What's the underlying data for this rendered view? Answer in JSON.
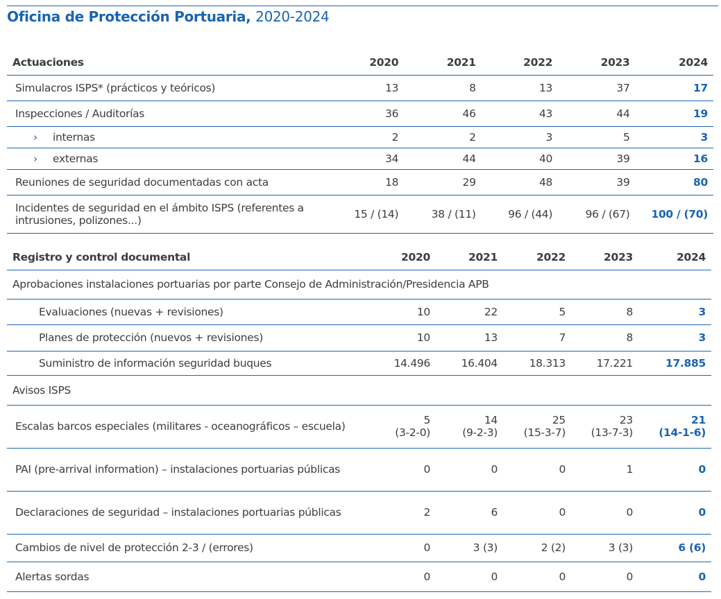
{
  "title": {
    "bold": "Oficina de Protección Portuaria,",
    "years": "2020-2024"
  },
  "actuaciones": {
    "header": [
      "Actuaciones",
      "2020",
      "2021",
      "2022",
      "2023",
      "2024"
    ],
    "rows": [
      {
        "label": "Simulacros ISPS* (prácticos y teóricos)",
        "values": [
          "13",
          "8",
          "13",
          "37",
          "17"
        ]
      },
      {
        "label": "Inspecciones / Auditorías",
        "values": [
          "36",
          "46",
          "43",
          "44",
          "19"
        ]
      },
      {
        "label": "internas",
        "sub": true,
        "values": [
          "2",
          "2",
          "3",
          "5",
          "3"
        ]
      },
      {
        "label": "externas",
        "sub": true,
        "values": [
          "34",
          "44",
          "40",
          "39",
          "16"
        ]
      },
      {
        "label": "Reuniones de seguridad documentadas con acta",
        "values": [
          "18",
          "29",
          "48",
          "39",
          "80"
        ]
      },
      {
        "label": "Incidentes de seguridad en el ámbito ISPS (referentes a intrusiones, polizones...)",
        "values": [
          "15 / (14)",
          "38 / (11)",
          "96 / (44)",
          "96 / (67)",
          "100 / (70)"
        ]
      }
    ]
  },
  "registro": {
    "header": [
      "Registro y control documental",
      "2020",
      "2021",
      "2022",
      "2023",
      "2024"
    ],
    "rows": [
      {
        "label": "Aprobaciones instalaciones portuarias por parte Consejo de Administración/Presidencia APB",
        "section": true
      },
      {
        "label": "Evaluaciones (nuevas + revisiones)",
        "indent": true,
        "values": [
          "10",
          "22",
          "5",
          "8",
          "3"
        ]
      },
      {
        "label": "Planes de protección (nuevos + revisiones)",
        "indent": true,
        "values": [
          "10",
          "13",
          "7",
          "8",
          "3"
        ]
      },
      {
        "label": "Suministro de información seguridad buques",
        "indent": true,
        "values": [
          "14.496",
          "16.404",
          "18.313",
          "17.221",
          "17.885"
        ]
      },
      {
        "label": "Avisos ISPS",
        "section": true
      },
      {
        "label": "Escalas barcos especiales (militares - oceanográficos – escuela)",
        "values": [
          "5\n(3-2-0)",
          "14\n(9-2-3)",
          "25\n(15-3-7)",
          "23\n(13-7-3)",
          "21\n(14-1-6)"
        ]
      },
      {
        "label": "PAI (pre-arrival information) – instalaciones portuarias públicas",
        "values": [
          "0",
          "0",
          "0",
          "1",
          "0"
        ]
      },
      {
        "label": "Declaraciones de seguridad – instalaciones portuarias públicas",
        "values": [
          "2",
          "6",
          "0",
          "0",
          "0"
        ]
      },
      {
        "label": "Cambios de nivel de protección 2-3 / (errores)",
        "values": [
          "0",
          "3 (3)",
          "2 (2)",
          "3 (3)",
          "6 (6)"
        ]
      },
      {
        "label": "Alertas sordas",
        "values": [
          "0",
          "0",
          "0",
          "0",
          "0"
        ]
      }
    ]
  },
  "colors": {
    "accent": "#1a64b0",
    "text": "#3d3d3d"
  }
}
